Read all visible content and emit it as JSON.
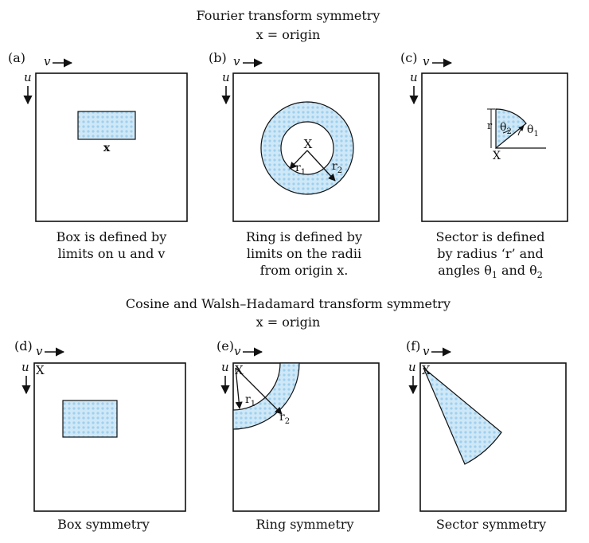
{
  "colors": {
    "fill": "#cfe8f7",
    "dot": "#9fd0ee",
    "stroke": "#111111"
  },
  "fourier": {
    "title": "Fourier transform symmetry",
    "subtitle": "x = origin",
    "panels": [
      {
        "tag": "(a)",
        "u": "u",
        "v": "v",
        "origin": "x",
        "caption": [
          "Box is defined by",
          "limits on u and v"
        ]
      },
      {
        "tag": "(b)",
        "u": "u",
        "v": "v",
        "origin": "X",
        "r1": "r",
        "r1sub": "1",
        "r2": "r",
        "r2sub": "2",
        "caption": [
          "Ring is defined by",
          "limits on the radii",
          "from origin x."
        ]
      },
      {
        "tag": "(c)",
        "u": "u",
        "v": "v",
        "origin": "X",
        "r": "r",
        "theta": "θ",
        "t1sub": "1",
        "t2sub": "2",
        "caption": [
          "Sector is defined",
          "by  radius ‘r’ and",
          "angles θ",
          "1",
          " and θ",
          "2"
        ]
      }
    ]
  },
  "cosine": {
    "title": "Cosine and Walsh–Hadamard transform symmetry",
    "subtitle": "x = origin",
    "panels": [
      {
        "tag": "(d)",
        "u": "u",
        "v": "v",
        "origin": "X",
        "caption": "Box symmetry"
      },
      {
        "tag": "(e)",
        "u": "u",
        "v": "v",
        "origin": "X",
        "r1": "r",
        "r1sub": "1",
        "r2": "r",
        "r2sub": "2",
        "caption": "Ring symmetry"
      },
      {
        "tag": "(f)",
        "u": "u",
        "v": "v",
        "origin": "X",
        "caption": "Sector symmetry"
      }
    ]
  }
}
